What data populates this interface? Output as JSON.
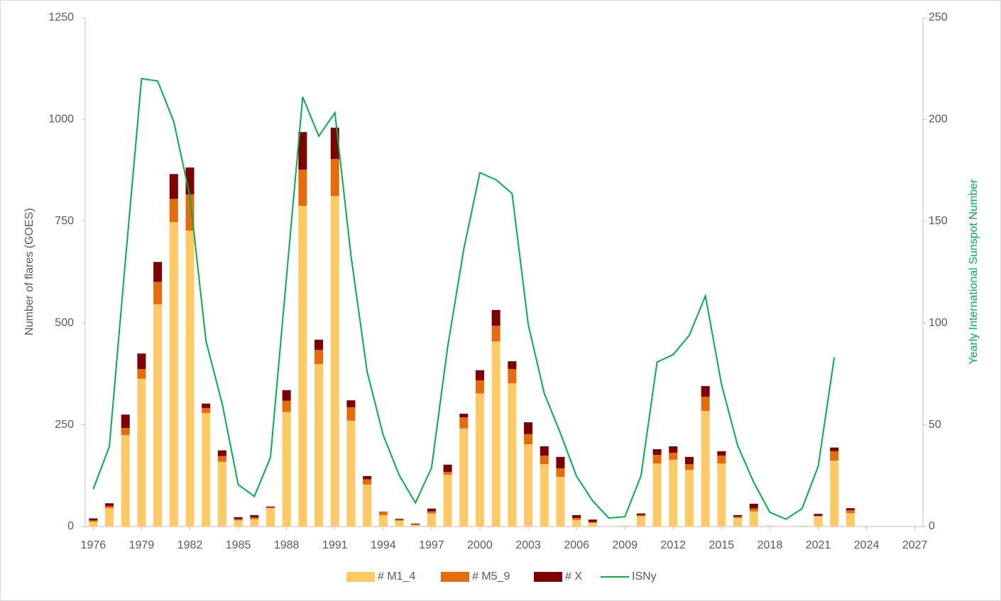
{
  "chart_data": {
    "type": "bar",
    "y_label": "Number of flares (GOES)",
    "y2_label": "Yearly International Sunspot Number",
    "x": [
      1976,
      1977,
      1978,
      1979,
      1980,
      1981,
      1982,
      1983,
      1984,
      1985,
      1986,
      1987,
      1988,
      1989,
      1990,
      1991,
      1992,
      1993,
      1994,
      1995,
      1996,
      1997,
      1998,
      1999,
      2000,
      2001,
      2002,
      2003,
      2004,
      2005,
      2006,
      2007,
      2008,
      2009,
      2010,
      2011,
      2012,
      2013,
      2014,
      2015,
      2016,
      2017,
      2018,
      2019,
      2020,
      2021,
      2022,
      2023
    ],
    "xlim": [
      1975.5,
      2027.5
    ],
    "xticks": [
      1976,
      1979,
      1982,
      1985,
      1988,
      1991,
      1994,
      1997,
      2000,
      2003,
      2006,
      2009,
      2012,
      2015,
      2018,
      2021,
      2024,
      2027
    ],
    "ylim": [
      0,
      1250
    ],
    "yticks": [
      0,
      250,
      500,
      750,
      1000,
      1250
    ],
    "y2lim": [
      0,
      250
    ],
    "y2ticks": [
      0,
      50,
      100,
      150,
      200,
      250
    ],
    "legend": "bottom",
    "series": [
      {
        "name": "# M1_4",
        "color": "#ffc966",
        "stack": true,
        "values": [
          12,
          45,
          225,
          363,
          546,
          748,
          727,
          279,
          159,
          15,
          18,
          45,
          281,
          788,
          399,
          812,
          260,
          103,
          28,
          14,
          4,
          32,
          127,
          241,
          327,
          455,
          352,
          202,
          153,
          122,
          16,
          9,
          1,
          2,
          25,
          155,
          164,
          139,
          284,
          155,
          21,
          37,
          2,
          1,
          2,
          25,
          162,
          33
        ]
      },
      {
        "name": "# M5_9",
        "color": "#e46c0a",
        "stack": true,
        "values": [
          3,
          5,
          17,
          24,
          55,
          57,
          89,
          12,
          14,
          3,
          4,
          2,
          28,
          89,
          35,
          91,
          33,
          13,
          9,
          3,
          1,
          5,
          7,
          27,
          32,
          38,
          35,
          25,
          21,
          21,
          5,
          2,
          0,
          0,
          3,
          21,
          17,
          14,
          35,
          19,
          3,
          7,
          0,
          0,
          0,
          1,
          23,
          7
        ]
      },
      {
        "name": "# X",
        "color": "#7f0000",
        "stack": true,
        "values": [
          5,
          7,
          33,
          38,
          49,
          61,
          66,
          11,
          14,
          5,
          6,
          2,
          26,
          92,
          25,
          77,
          17,
          8,
          0,
          2,
          2,
          7,
          18,
          9,
          25,
          39,
          19,
          29,
          23,
          28,
          7,
          6,
          0,
          0,
          4,
          14,
          16,
          18,
          26,
          11,
          4,
          12,
          0,
          0,
          0,
          5,
          9,
          5
        ]
      },
      {
        "name": "ISNy",
        "color": "#00b050",
        "type": "line",
        "axis": "y2",
        "values": [
          18.4,
          39.3,
          131.0,
          220.1,
          218.9,
          198.9,
          162.4,
          91.0,
          60.5,
          20.6,
          14.8,
          33.9,
          123.0,
          211.1,
          191.8,
          203.3,
          133.0,
          76.1,
          44.9,
          25.1,
          11.6,
          28.9,
          88.3,
          136.3,
          173.9,
          170.4,
          163.6,
          99.3,
          65.3,
          45.8,
          24.7,
          12.6,
          4.2,
          4.8,
          24.9,
          80.8,
          84.5,
          94.0,
          113.3,
          69.8,
          39.8,
          21.7,
          7.0,
          3.6,
          8.8,
          29.6,
          83.2,
          null
        ]
      }
    ]
  }
}
